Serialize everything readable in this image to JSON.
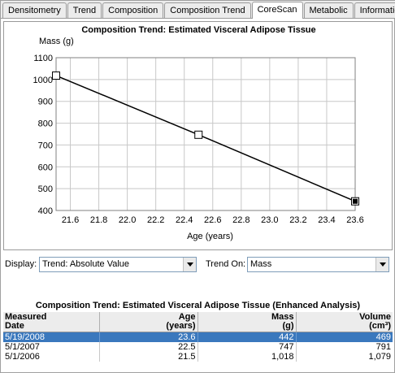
{
  "tabs": [
    {
      "label": "Densitometry",
      "active": false
    },
    {
      "label": "Trend",
      "active": false
    },
    {
      "label": "Composition",
      "active": false
    },
    {
      "label": "Composition Trend",
      "active": false
    },
    {
      "label": "CoreScan",
      "active": true
    },
    {
      "label": "Metabolic",
      "active": false
    },
    {
      "label": "Information",
      "active": false
    }
  ],
  "chart_data": {
    "type": "line",
    "title": "Composition Trend: Estimated Visceral Adipose Tissue",
    "xlabel": "Age (years)",
    "ylabel": "Mass (g)",
    "xlim": [
      21.5,
      23.6
    ],
    "ylim": [
      400,
      1100
    ],
    "xticks": [
      "21.6",
      "21.8",
      "22.0",
      "22.2",
      "22.4",
      "22.6",
      "22.8",
      "23.0",
      "23.2",
      "23.4",
      "23.6"
    ],
    "yticks": [
      "400",
      "500",
      "600",
      "700",
      "800",
      "900",
      "1000",
      "1100"
    ],
    "grid": true,
    "series": [
      {
        "x": [
          21.5,
          22.5,
          23.6
        ],
        "y": [
          1018,
          747,
          442
        ],
        "selected": [
          false,
          false,
          true
        ]
      }
    ]
  },
  "controls": {
    "display_label": "Display:",
    "display_value": "Trend: Absolute Value",
    "trend_on_label": "Trend On:",
    "trend_on_value": "Mass"
  },
  "table": {
    "title": "Composition Trend: Estimated Visceral Adipose Tissue (Enhanced Analysis)",
    "headers": [
      {
        "line1": "Measured",
        "line2": "Date"
      },
      {
        "line1": "Age",
        "line2": "(years)"
      },
      {
        "line1": "Mass",
        "line2": "(g)"
      },
      {
        "line1": "Volume",
        "line2": "(cm³)"
      }
    ],
    "rows": [
      {
        "date": "5/19/2008",
        "age": "23.6",
        "mass": "442",
        "volume": "469",
        "selected": true
      },
      {
        "date": "5/1/2007",
        "age": "22.5",
        "mass": "747",
        "volume": "791",
        "selected": false
      },
      {
        "date": "5/1/2006",
        "age": "21.5",
        "mass": "1,018",
        "volume": "1,079",
        "selected": false
      }
    ]
  }
}
